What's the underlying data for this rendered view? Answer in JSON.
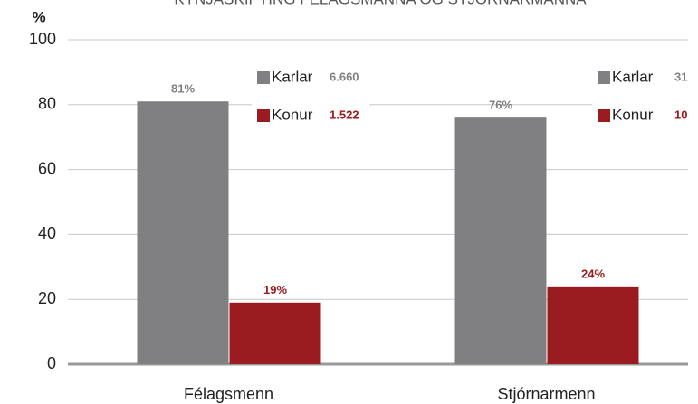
{
  "chart_data": {
    "type": "bar",
    "title": "KYNJASKIPTING FÉLAGSMANNA OG STJÓRNARMANNA",
    "y_label": "%",
    "categories": [
      "Félagsmenn",
      "Stjórnarmenn"
    ],
    "series": [
      {
        "name": "Karlar",
        "color": "#808083",
        "values": [
          81,
          76
        ],
        "value_labels": [
          "81%",
          "76%"
        ],
        "counts": [
          "6.660",
          "31"
        ]
      },
      {
        "name": "Konur",
        "color": "#9b1c20",
        "values": [
          19,
          24
        ],
        "value_labels": [
          "19%",
          "24%"
        ],
        "counts": [
          "1.522",
          "10"
        ]
      }
    ],
    "ylim": [
      0,
      100
    ],
    "yticks": [
      0,
      20,
      40,
      60,
      80,
      100
    ],
    "grid": true
  }
}
